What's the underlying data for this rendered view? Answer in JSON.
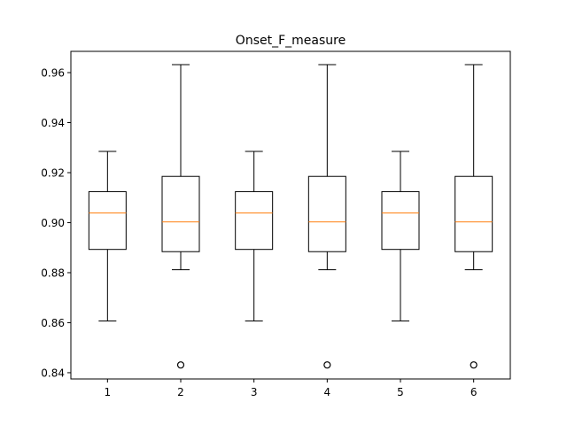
{
  "chart_data": {
    "type": "box",
    "title": "Onset_F_measure",
    "xlabel": "",
    "ylabel": "",
    "categories": [
      "1",
      "2",
      "3",
      "4",
      "5",
      "6"
    ],
    "ylim": [
      0.8375,
      0.9685
    ],
    "yticks": [
      0.84,
      0.86,
      0.88,
      0.9,
      0.92,
      0.94,
      0.96
    ],
    "ytick_labels": [
      "0.84",
      "0.86",
      "0.88",
      "0.90",
      "0.92",
      "0.94",
      "0.96"
    ],
    "grid": false,
    "boxes": [
      {
        "category": "1",
        "whisker_low": 0.8607,
        "q1": 0.8893,
        "median": 0.9039,
        "q3": 0.9124,
        "whisker_high": 0.9285,
        "outliers": []
      },
      {
        "category": "2",
        "whisker_low": 0.8812,
        "q1": 0.8884,
        "median": 0.9003,
        "q3": 0.9185,
        "whisker_high": 0.9632,
        "outliers": [
          0.8431
        ]
      },
      {
        "category": "3",
        "whisker_low": 0.8607,
        "q1": 0.8893,
        "median": 0.9039,
        "q3": 0.9124,
        "whisker_high": 0.9285,
        "outliers": []
      },
      {
        "category": "4",
        "whisker_low": 0.8812,
        "q1": 0.8884,
        "median": 0.9003,
        "q3": 0.9185,
        "whisker_high": 0.9632,
        "outliers": [
          0.8431
        ]
      },
      {
        "category": "5",
        "whisker_low": 0.8607,
        "q1": 0.8893,
        "median": 0.9039,
        "q3": 0.9124,
        "whisker_high": 0.9285,
        "outliers": []
      },
      {
        "category": "6",
        "whisker_low": 0.8812,
        "q1": 0.8884,
        "median": 0.9003,
        "q3": 0.9185,
        "whisker_high": 0.9632,
        "outliers": [
          0.8431
        ]
      }
    ],
    "colors": {
      "box": "#000000",
      "median": "#ff7f0e",
      "outlier": "#000000"
    }
  }
}
